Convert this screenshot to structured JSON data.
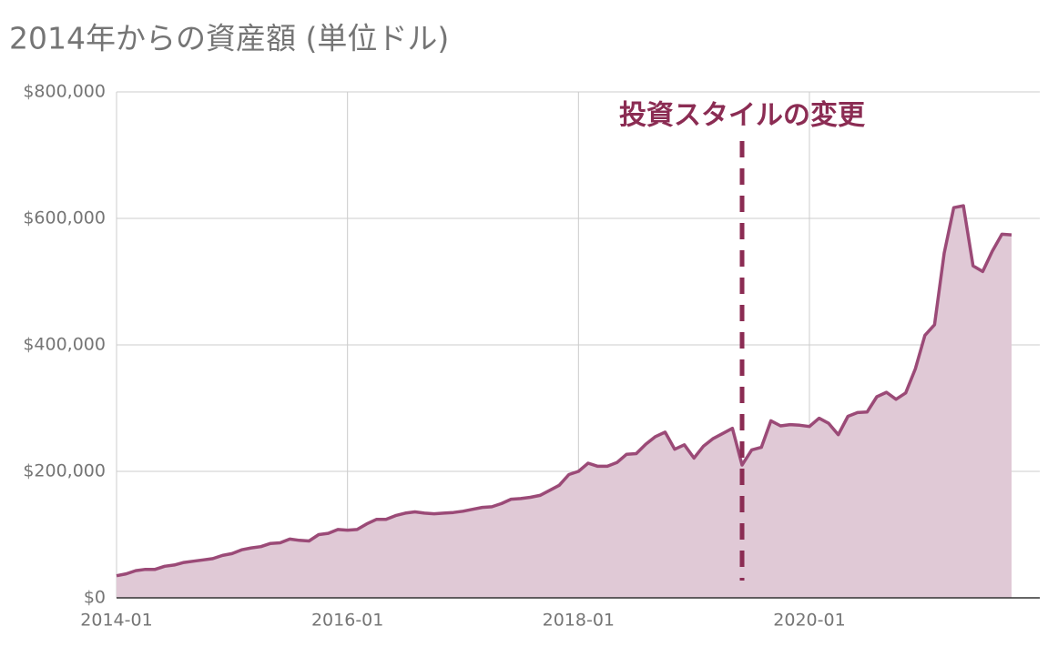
{
  "chart_data": {
    "type": "area",
    "title": "2014年からの資産額 (単位ドル)",
    "x": [
      "2014-01",
      "2014-02",
      "2014-03",
      "2014-04",
      "2014-05",
      "2014-06",
      "2014-07",
      "2014-08",
      "2014-09",
      "2014-10",
      "2014-11",
      "2014-12",
      "2015-01",
      "2015-02",
      "2015-03",
      "2015-04",
      "2015-05",
      "2015-06",
      "2015-07",
      "2015-08",
      "2015-09",
      "2015-10",
      "2015-11",
      "2015-12",
      "2016-01",
      "2016-02",
      "2016-03",
      "2016-04",
      "2016-05",
      "2016-06",
      "2016-07",
      "2016-08",
      "2016-09",
      "2016-10",
      "2016-11",
      "2016-12",
      "2017-01",
      "2017-02",
      "2017-03",
      "2017-04",
      "2017-05",
      "2017-06",
      "2017-07",
      "2017-08",
      "2017-09",
      "2017-10",
      "2017-11",
      "2017-12",
      "2018-01",
      "2018-02",
      "2018-03",
      "2018-04",
      "2018-05",
      "2018-06",
      "2018-07",
      "2018-08",
      "2018-09",
      "2018-10",
      "2018-11",
      "2018-12",
      "2019-01",
      "2019-02",
      "2019-03",
      "2019-04",
      "2019-05",
      "2019-06",
      "2019-07",
      "2019-08",
      "2019-09",
      "2019-10",
      "2019-11",
      "2019-12",
      "2020-01",
      "2020-02",
      "2020-03",
      "2020-04",
      "2020-05",
      "2020-06",
      "2020-07",
      "2020-08",
      "2020-09",
      "2020-10",
      "2020-11",
      "2020-12",
      "2021-01",
      "2021-02",
      "2021-03",
      "2021-04",
      "2021-05",
      "2021-06",
      "2021-07",
      "2021-08",
      "2021-09",
      "2021-10"
    ],
    "values": [
      35000,
      38000,
      43000,
      45000,
      45000,
      50000,
      52000,
      56000,
      58000,
      60000,
      62000,
      67000,
      70000,
      76000,
      79000,
      81000,
      86000,
      87000,
      93000,
      91000,
      90000,
      100000,
      102000,
      108000,
      107000,
      108000,
      117000,
      124000,
      124000,
      130000,
      134000,
      136000,
      134000,
      133000,
      134000,
      135000,
      137000,
      140000,
      143000,
      144000,
      149000,
      156000,
      157000,
      159000,
      162000,
      170000,
      178000,
      195000,
      200000,
      213000,
      208000,
      208000,
      214000,
      227000,
      228000,
      243000,
      255000,
      262000,
      235000,
      242000,
      221000,
      240000,
      252000,
      260000,
      268000,
      210000,
      234000,
      238000,
      280000,
      272000,
      274000,
      273000,
      271000,
      284000,
      276000,
      258000,
      287000,
      293000,
      294000,
      318000,
      325000,
      314000,
      324000,
      362000,
      415000,
      432000,
      545000,
      617000,
      620000,
      525000,
      516000,
      548000,
      575000,
      574000
    ],
    "line_color": "#9b4a77",
    "fill_color": "#e0c9d6",
    "ylim": [
      0,
      800000
    ],
    "yticks": [
      {
        "value": 0,
        "label": "$0"
      },
      {
        "value": 200000,
        "label": "$200,000"
      },
      {
        "value": 400000,
        "label": "$400,000"
      },
      {
        "value": 600000,
        "label": "$600,000"
      },
      {
        "value": 800000,
        "label": "$800,000"
      }
    ],
    "xticks": [
      "2014-01",
      "2016-01",
      "2018-01",
      "2020-01"
    ],
    "grid": true,
    "annotation": {
      "text": "投資スタイルの変更",
      "x": "2019-06",
      "color": "#8b2c53"
    }
  }
}
